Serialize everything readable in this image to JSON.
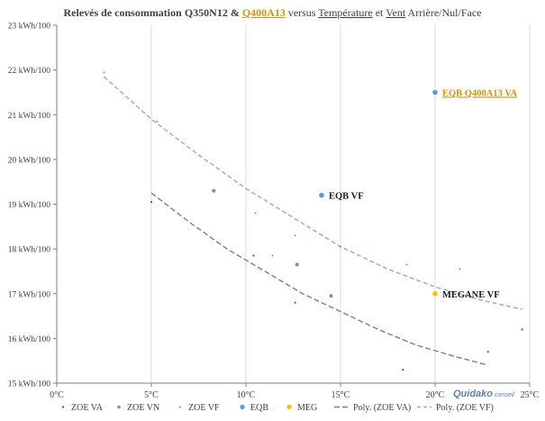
{
  "title": {
    "prefix": "Relevés de consommation Q350N12 & ",
    "highlight": "Q400A13",
    "mid1": " versus ",
    "word_temp": "Température",
    "mid2": " et ",
    "word_vent": "Vent",
    "suffix": " Arrière/Nul/Face"
  },
  "watermark": {
    "brand": "Quidako",
    "suffix": "conseil"
  },
  "colors": {
    "highlight": "#c8960a",
    "eqb": "#5b9bd5",
    "meg": "#ffc000",
    "grid": "#d9d9d9",
    "axis": "#7f7f7f",
    "dark_point": "#595959",
    "poly_va": "#7f7f7f",
    "poly_vf": "#8fa9d8"
  },
  "chart_data": {
    "type": "scatter",
    "xlim": [
      0,
      25
    ],
    "ylim": [
      15,
      23
    ],
    "x_ticks": [
      0,
      5,
      10,
      15,
      20,
      25
    ],
    "x_tick_labels": [
      "0°C",
      "5°C",
      "10°C",
      "15°C",
      "20°C",
      "25°C"
    ],
    "y_ticks": [
      15,
      16,
      17,
      18,
      19,
      20,
      21,
      22,
      23
    ],
    "y_tick_labels": [
      "15 kWh/100",
      "16 kWh/100",
      "17 kWh/100",
      "18 kWh/100",
      "19 kWh/100",
      "20 kWh/100",
      "21 kWh/100",
      "22 kWh/100",
      "23 kWh/100"
    ],
    "grid": "vertical",
    "legend_position": "bottom",
    "series": [
      {
        "name": "ZOE VA",
        "points": [
          [
            5.0,
            19.05
          ],
          [
            10.4,
            17.85
          ],
          [
            12.6,
            16.8
          ],
          [
            18.3,
            15.3
          ],
          [
            22.8,
            15.7
          ],
          [
            24.6,
            16.2
          ]
        ]
      },
      {
        "name": "ZOE VN",
        "points": [
          [
            8.3,
            19.3
          ],
          [
            12.7,
            17.65
          ],
          [
            14.5,
            16.95
          ]
        ]
      },
      {
        "name": "ZOE VF",
        "points": [
          [
            2.5,
            21.95
          ],
          [
            5.3,
            20.85
          ],
          [
            10.5,
            18.8
          ],
          [
            11.4,
            17.85
          ],
          [
            12.6,
            18.3
          ],
          [
            15.0,
            18.05
          ],
          [
            18.5,
            17.65
          ],
          [
            21.3,
            17.55
          ]
        ]
      },
      {
        "name": "EQB",
        "points": [
          [
            14.0,
            19.2
          ],
          [
            20.0,
            21.5
          ]
        ]
      },
      {
        "name": "MEG",
        "points": [
          [
            20.0,
            17.0
          ]
        ]
      }
    ],
    "point_labels": [
      {
        "text": "EQB Q400A13 VA",
        "x": 20.0,
        "y": 21.5
      },
      {
        "text": "EQB VF",
        "x": 14.0,
        "y": 19.2
      },
      {
        "text": "MEGANE VF",
        "x": 20.0,
        "y": 17.0
      }
    ],
    "trendlines": [
      {
        "name": "Poly. (ZOE VA)",
        "x": [
          5.0,
          7.0,
          9.0,
          11.0,
          13.0,
          15.0,
          17.0,
          19.0,
          21.0,
          22.8
        ],
        "y": [
          19.25,
          18.6,
          18.0,
          17.5,
          17.0,
          16.6,
          16.2,
          15.85,
          15.6,
          15.4
        ]
      },
      {
        "name": "Poly. (ZOE VF)",
        "x": [
          2.5,
          5.0,
          7.5,
          10.0,
          12.5,
          15.0,
          17.5,
          20.0,
          22.5,
          24.6
        ],
        "y": [
          21.85,
          20.9,
          20.1,
          19.35,
          18.7,
          18.05,
          17.55,
          17.15,
          16.85,
          16.65
        ]
      }
    ],
    "legend": [
      "ZOE VA",
      "ZOE VN",
      "ZOE VF",
      "EQB",
      "MEG",
      "Poly. (ZOE VA)",
      "Poly. (ZOE VF)"
    ]
  }
}
